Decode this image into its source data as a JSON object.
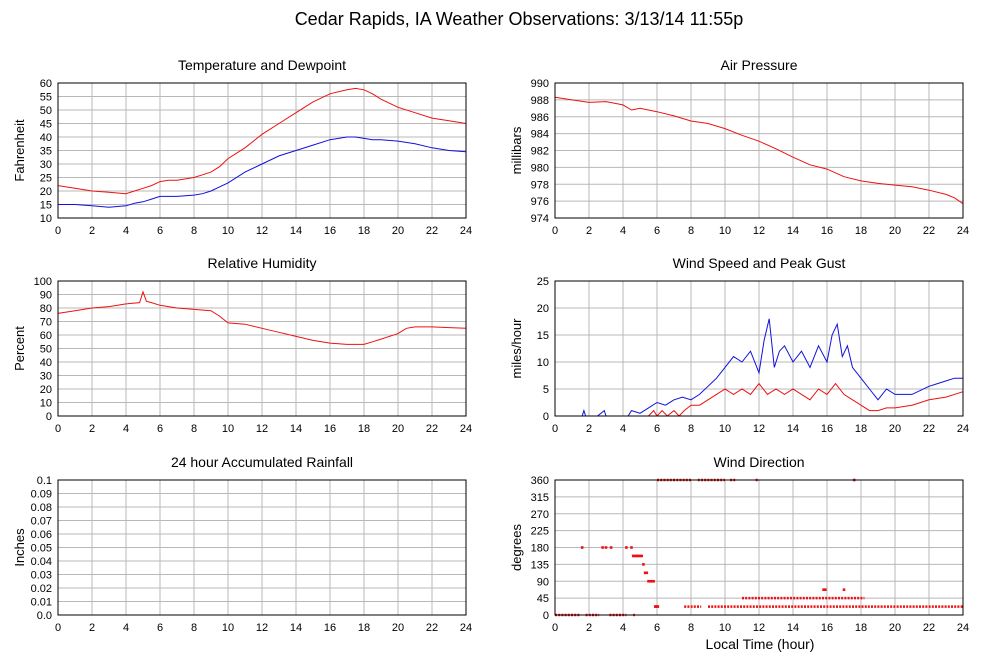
{
  "title": "Cedar Rapids, IA Weather Observations: 3/13/14 11:55p",
  "x_axis_label": "Local Time (hour)",
  "colors": {
    "red": "#ee1111",
    "blue": "#1111dd",
    "grid": "#b8b8b8"
  },
  "chart_data": [
    {
      "id": "temp",
      "type": "line",
      "title": "Temperature and Dewpoint",
      "ylabel": "Fahrenheit",
      "xlim": [
        0,
        24
      ],
      "ylim": [
        10,
        60
      ],
      "xticks": [
        0,
        2,
        4,
        6,
        8,
        10,
        12,
        14,
        16,
        18,
        20,
        22,
        24
      ],
      "yticks": [
        10,
        15,
        20,
        25,
        30,
        35,
        40,
        45,
        50,
        55,
        60
      ],
      "grid": true,
      "series": [
        {
          "color": "#ee1111",
          "x": [
            0,
            1,
            2,
            3,
            4,
            4.5,
            5,
            5.5,
            6,
            6.5,
            7,
            8,
            8.5,
            9,
            9.5,
            10,
            11,
            12,
            13,
            14,
            15,
            16,
            17,
            17.5,
            18,
            18.5,
            19,
            20,
            21,
            22,
            23,
            24
          ],
          "y": [
            22,
            21,
            20,
            19.5,
            19,
            20,
            21,
            22,
            23.5,
            24,
            24,
            25,
            26,
            27,
            29,
            32,
            36,
            41,
            45,
            49,
            53,
            56,
            57.5,
            58,
            57.5,
            56,
            54,
            51,
            49,
            47,
            46,
            45
          ]
        },
        {
          "color": "#1111dd",
          "x": [
            0,
            1,
            2,
            3,
            4,
            4.5,
            5,
            5.5,
            6,
            7,
            8,
            8.5,
            9,
            9.5,
            10,
            11,
            12,
            13,
            14,
            15,
            16,
            17,
            17.5,
            18,
            18.5,
            19,
            20,
            21,
            22,
            23,
            24
          ],
          "y": [
            15,
            15,
            14.5,
            14,
            14.5,
            15.5,
            16,
            17,
            18,
            18,
            18.5,
            19,
            20,
            21.5,
            23,
            27,
            30,
            33,
            35,
            37,
            39,
            40,
            40,
            39.5,
            39,
            39,
            38.5,
            37.5,
            36,
            35,
            34.5
          ]
        }
      ]
    },
    {
      "id": "pressure",
      "type": "line",
      "title": "Air Pressure",
      "ylabel": "millibars",
      "xlim": [
        0,
        24
      ],
      "ylim": [
        974,
        990
      ],
      "xticks": [
        0,
        2,
        4,
        6,
        8,
        10,
        12,
        14,
        16,
        18,
        20,
        22,
        24
      ],
      "yticks": [
        974,
        976,
        978,
        980,
        982,
        984,
        986,
        988,
        990
      ],
      "grid": true,
      "series": [
        {
          "color": "#ee1111",
          "x": [
            0,
            1,
            2,
            3,
            4,
            4.5,
            5,
            6,
            7,
            8,
            9,
            10,
            11,
            12,
            13,
            14,
            15,
            16,
            17,
            18,
            19,
            20,
            21,
            22,
            23,
            23.5,
            24
          ],
          "y": [
            988.3,
            988,
            987.7,
            987.8,
            987.4,
            986.8,
            987,
            986.6,
            986.1,
            985.5,
            985.2,
            984.6,
            983.8,
            983.1,
            982.2,
            981.2,
            980.3,
            979.8,
            978.9,
            978.4,
            978.1,
            977.9,
            977.7,
            977.3,
            976.8,
            976.4,
            975.7
          ]
        }
      ]
    },
    {
      "id": "rh",
      "type": "line",
      "title": "Relative Humidity",
      "ylabel": "Percent",
      "xlim": [
        0,
        24
      ],
      "ylim": [
        0,
        100
      ],
      "xticks": [
        0,
        2,
        4,
        6,
        8,
        10,
        12,
        14,
        16,
        18,
        20,
        22,
        24
      ],
      "yticks": [
        0,
        10,
        20,
        30,
        40,
        50,
        60,
        70,
        80,
        90,
        100
      ],
      "grid": true,
      "series": [
        {
          "color": "#ee1111",
          "x": [
            0,
            1,
            2,
            3,
            4,
            4.8,
            5,
            5.2,
            5.5,
            6,
            7,
            8,
            9,
            9.5,
            10,
            11,
            12,
            13,
            14,
            15,
            16,
            17,
            18,
            18.5,
            19,
            20,
            20.5,
            21,
            22,
            23,
            24
          ],
          "y": [
            76,
            78,
            80,
            81,
            83,
            84,
            92,
            85,
            84,
            82,
            80,
            79,
            78,
            74,
            69,
            68,
            65,
            62,
            59,
            56,
            54,
            53,
            53,
            55,
            57,
            61,
            65,
            66,
            66,
            65.5,
            65
          ]
        }
      ]
    },
    {
      "id": "wind",
      "type": "line",
      "title": "Wind Speed and Peak Gust",
      "ylabel": "miles/hour",
      "xlim": [
        0,
        24
      ],
      "ylim": [
        0,
        25
      ],
      "xticks": [
        0,
        2,
        4,
        6,
        8,
        10,
        12,
        14,
        16,
        18,
        20,
        22,
        24
      ],
      "yticks": [
        0,
        5,
        10,
        15,
        20,
        25
      ],
      "grid": true,
      "series": [
        {
          "color": "#1111dd",
          "x": [
            0,
            1.6,
            1.7,
            1.8,
            2.5,
            2.9,
            3,
            3.2,
            4.3,
            4.5,
            5,
            5.5,
            6,
            6.5,
            7,
            7.5,
            8,
            8.5,
            9,
            9.5,
            10,
            10.5,
            11,
            11.5,
            12,
            12.3,
            12.6,
            12.9,
            13.2,
            13.5,
            14,
            14.5,
            15,
            15.5,
            16,
            16.3,
            16.6,
            16.9,
            17.2,
            17.5,
            18,
            18.5,
            19,
            19.5,
            20,
            21,
            22,
            22.5,
            23,
            23.5,
            24
          ],
          "y": [
            0,
            0,
            1,
            0,
            0,
            1,
            0,
            0,
            0,
            1,
            0.5,
            1.5,
            2.5,
            2,
            3,
            3.5,
            3,
            4,
            5.5,
            7,
            9,
            11,
            10,
            12,
            8,
            14,
            18,
            9,
            12,
            13,
            10,
            12,
            9,
            13,
            10,
            15,
            17,
            11,
            13,
            9,
            7,
            5,
            3,
            5,
            4,
            4,
            5.5,
            6,
            6.5,
            7,
            7
          ]
        },
        {
          "color": "#ee1111",
          "x": [
            0,
            5.5,
            5.8,
            6,
            6.3,
            6.6,
            7,
            7.3,
            7.6,
            8,
            8.5,
            9,
            9.5,
            10,
            10.5,
            11,
            11.5,
            12,
            12.5,
            13,
            13.5,
            14,
            14.5,
            15,
            15.5,
            16,
            16.5,
            17,
            17.5,
            18,
            18.5,
            19,
            19.5,
            20,
            21,
            22,
            23,
            24
          ],
          "y": [
            0,
            0,
            1,
            0,
            1,
            0,
            1,
            0,
            1,
            2,
            2,
            3,
            4,
            5,
            4,
            5,
            4,
            6,
            4,
            5,
            4,
            5,
            4,
            3,
            5,
            4,
            6,
            4,
            3,
            2,
            1,
            1,
            1.5,
            1.5,
            2,
            3,
            3.5,
            4.5
          ]
        }
      ]
    },
    {
      "id": "rain",
      "type": "line",
      "title": "24 hour Accumulated Rainfall",
      "ylabel": "Inches",
      "xlim": [
        0,
        24
      ],
      "ylim": [
        0,
        0.1
      ],
      "xticks": [
        0,
        2,
        4,
        6,
        8,
        10,
        12,
        14,
        16,
        18,
        20,
        22,
        24
      ],
      "yticks": [
        0.0,
        0.01,
        0.02,
        0.03,
        0.04,
        0.05,
        0.06,
        0.07,
        0.08,
        0.09,
        0.1
      ],
      "ytick_labels": [
        "0.0",
        "0.01",
        "0.02",
        "0.03",
        "0.04",
        "0.05",
        "0.06",
        "0.07",
        "0.08",
        "0.09",
        "0.1"
      ],
      "grid": true,
      "series": [
        {
          "color": "#ee1111",
          "x": [
            0,
            24
          ],
          "y": [
            0,
            0
          ]
        }
      ]
    },
    {
      "id": "winddir",
      "type": "scatter",
      "title": "Wind Direction",
      "ylabel": "degrees",
      "xlim": [
        0,
        24
      ],
      "ylim": [
        0,
        360
      ],
      "xticks": [
        0,
        2,
        4,
        6,
        8,
        10,
        12,
        14,
        16,
        18,
        20,
        22,
        24
      ],
      "yticks": [
        0,
        45,
        90,
        135,
        180,
        225,
        270,
        315,
        360
      ],
      "grid": true,
      "series": [
        {
          "color": "#ee1111",
          "segments": [
            {
              "x0": 0,
              "x1": 1.5,
              "y": 0
            },
            {
              "x0": 1.8,
              "x1": 2.6,
              "y": 0
            },
            {
              "x0": 3.2,
              "x1": 4.2,
              "y": 0
            },
            {
              "x0": 4.6,
              "x1": 4.7,
              "y": 0
            },
            {
              "x0": 6.0,
              "x1": 8.0,
              "y": 360
            },
            {
              "x0": 8.4,
              "x1": 10.0,
              "y": 360
            },
            {
              "x0": 10.3,
              "x1": 10.6,
              "y": 360
            },
            {
              "x0": 11.8,
              "x1": 12.0,
              "y": 360
            },
            {
              "x0": 7.6,
              "x1": 8.6,
              "y": 22.5
            },
            {
              "x0": 9.0,
              "x1": 18.4,
              "y": 22.5
            },
            {
              "x0": 18.4,
              "x1": 24.0,
              "y": 22.5
            },
            {
              "x0": 11.0,
              "x1": 18.2,
              "y": 45
            }
          ],
          "points_x": [
            1.6,
            2.8,
            3.0,
            3.3,
            4.2,
            4.5,
            4.6,
            4.7,
            4.8,
            4.9,
            5.0,
            5.1,
            5.2,
            5.3,
            5.4,
            5.5,
            5.6,
            5.7,
            5.8,
            5.9,
            5.95,
            6.0,
            6.05,
            15.8,
            15.9,
            17.0,
            17.6
          ],
          "points_y": [
            180,
            180,
            180,
            180,
            180,
            180,
            157.5,
            157.5,
            157.5,
            157.5,
            157.5,
            157.5,
            135,
            112.5,
            112.5,
            90,
            90,
            90,
            90,
            22.5,
            22.5,
            22.5,
            22.5,
            67.5,
            67.5,
            67.5,
            360
          ]
        }
      ]
    }
  ]
}
